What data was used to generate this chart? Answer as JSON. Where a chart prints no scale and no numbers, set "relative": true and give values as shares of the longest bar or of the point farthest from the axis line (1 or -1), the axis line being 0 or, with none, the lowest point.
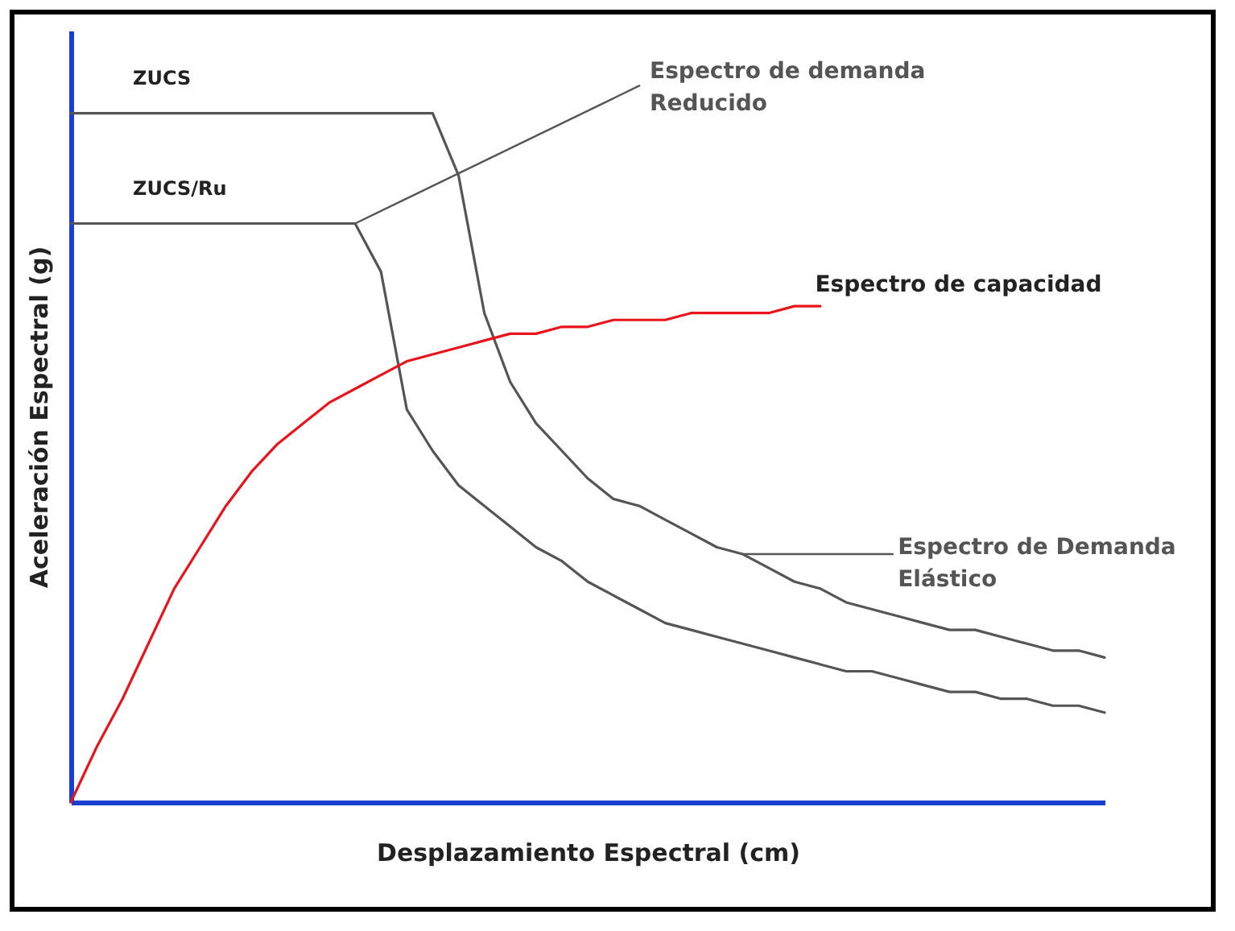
{
  "chart_data": {
    "type": "line",
    "relative": true,
    "xlabel": "Desplazamiento Espectral (cm)",
    "ylabel": "Aceleración Espectral (g)",
    "legend": false,
    "marker": "none",
    "line_style": "solid",
    "categories": [
      null,
      null,
      null,
      null,
      null,
      null,
      null,
      null,
      null,
      null,
      null,
      null,
      null,
      null,
      null,
      null,
      null,
      null,
      null,
      null,
      null,
      null,
      null,
      null,
      null,
      null,
      null,
      null,
      null,
      null,
      null,
      null,
      null,
      null,
      null,
      null,
      null,
      null,
      null,
      null,
      null
    ],
    "series": [
      {
        "name": "Espectro de Demanda Elástico",
        "color": "#555555",
        "values": [
          1,
          1,
          1,
          1,
          1,
          1,
          1,
          1,
          1,
          1,
          1,
          1,
          1,
          1,
          1,
          0.91,
          0.71,
          0.61,
          0.55,
          0.51,
          0.47,
          0.44,
          0.43,
          0.41,
          0.39,
          0.37,
          0.36,
          0.34,
          0.32,
          0.31,
          0.29,
          0.28,
          0.27,
          0.26,
          0.25,
          0.25,
          0.24,
          0.23,
          0.22,
          0.22,
          0.21
        ]
      },
      {
        "name": "Espectro de demanda Reducido",
        "color": "#555555",
        "values": [
          0.84,
          0.84,
          0.84,
          0.84,
          0.84,
          0.84,
          0.84,
          0.84,
          0.84,
          0.84,
          0.84,
          0.84,
          0.77,
          0.57,
          0.51,
          0.46,
          0.43,
          0.4,
          0.37,
          0.35,
          0.32,
          0.3,
          0.28,
          0.26,
          0.25,
          0.24,
          0.23,
          0.22,
          0.21,
          0.2,
          0.19,
          0.19,
          0.18,
          0.17,
          0.16,
          0.16,
          0.15,
          0.15,
          0.14,
          0.14,
          0.13
        ]
      },
      {
        "name": "Espectro de capacidad",
        "color": "#e8141c",
        "values": [
          0,
          0.08,
          0.15,
          0.23,
          0.31,
          0.37,
          0.43,
          0.48,
          0.52,
          0.55,
          0.58,
          0.6,
          0.62,
          0.64,
          0.65,
          0.66,
          0.67,
          0.68,
          0.68,
          0.69,
          0.69,
          0.7,
          0.7,
          0.7,
          0.71,
          0.71,
          0.71,
          0.71,
          0.72,
          0.72,
          null,
          null,
          null,
          null,
          null,
          null,
          null,
          null,
          null,
          null,
          null
        ]
      }
    ],
    "annotations": [
      "ZUCS",
      "ZUCS/Ru"
    ]
  }
}
